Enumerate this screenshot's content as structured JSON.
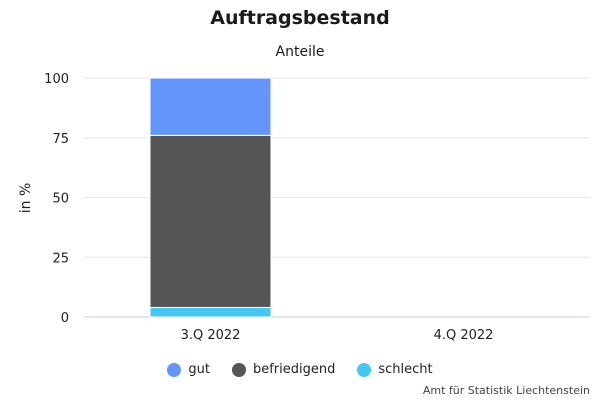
{
  "chart_data": {
    "type": "bar",
    "stacked": true,
    "title": "Auftragsbestand",
    "subtitle": "Anteile",
    "xlabel": "",
    "ylabel": "in %",
    "ylim": [
      0,
      100
    ],
    "yticks": [
      0,
      25,
      50,
      75,
      100
    ],
    "categories": [
      "3.Q 2022",
      "4.Q 2022"
    ],
    "series": [
      {
        "name": "gut",
        "color": "#6495fa",
        "values": [
          24,
          null
        ]
      },
      {
        "name": "befriedigend",
        "color": "#555555",
        "values": [
          72,
          null
        ]
      },
      {
        "name": "schlecht",
        "color": "#47c6f2",
        "values": [
          4,
          null
        ]
      }
    ],
    "stack_order": [
      "schlecht",
      "befriedigend",
      "gut"
    ],
    "legend_position": "bottom",
    "grid": true
  },
  "credit": "Amt für Statistik Liechtenstein"
}
